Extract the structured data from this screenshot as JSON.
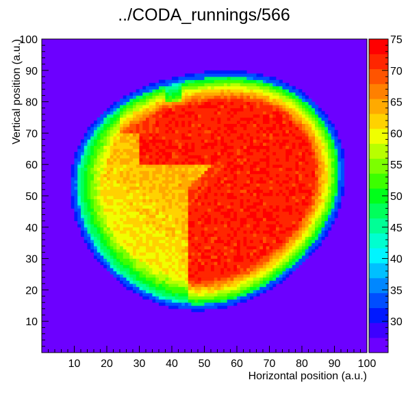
{
  "chart_data": {
    "type": "heatmap",
    "title": "../CODA_runnings/566",
    "xlabel": "Horizontal position (a.u.)",
    "ylabel": "Vertical position (a.u.)",
    "xlim": [
      0,
      100
    ],
    "ylim": [
      0,
      100
    ],
    "bins": [
      100,
      100
    ],
    "x_ticks": [
      10,
      20,
      30,
      40,
      50,
      60,
      70,
      80,
      90,
      100
    ],
    "y_ticks": [
      10,
      20,
      30,
      40,
      50,
      60,
      70,
      80,
      90,
      100
    ],
    "grid": false,
    "colorbar": {
      "range": [
        25,
        75
      ],
      "ticks": [
        30,
        35,
        40,
        45,
        50,
        55,
        60,
        65,
        70,
        75
      ],
      "colors": [
        "#6c00ff",
        "#3d00ff",
        "#0019ff",
        "#004eff",
        "#0087ff",
        "#00c0ff",
        "#00f5ff",
        "#00ffcf",
        "#00ff96",
        "#00ff5b",
        "#00ff1a",
        "#3cff00",
        "#7cff00",
        "#b8ff00",
        "#f0ff00",
        "#ffd200",
        "#ffaa00",
        "#ff8000",
        "#ff5400",
        "#ff2600",
        "#ff0000"
      ]
    },
    "description_values": {
      "background_level": 25,
      "rim_level": 35,
      "edge_level": 55,
      "central_band_level": 64,
      "hot_region_level": 72
    }
  }
}
